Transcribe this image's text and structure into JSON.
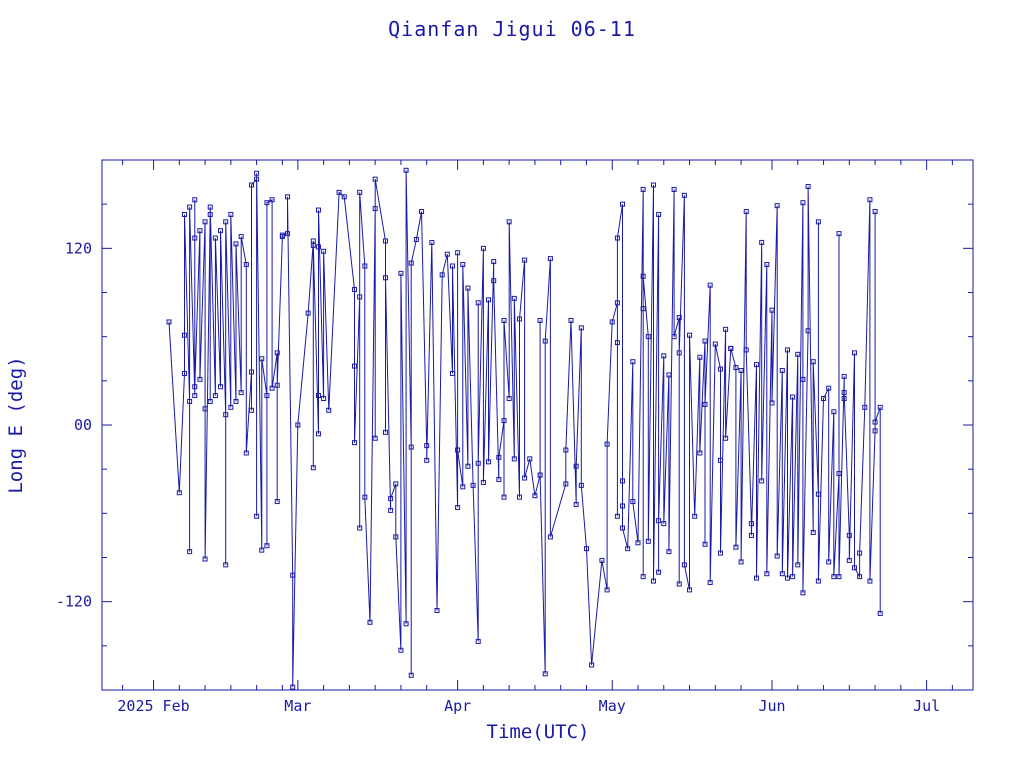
{
  "chart_data": {
    "type": "line",
    "title": "Qianfan Jigui 06-11",
    "xlabel": "Time(UTC)",
    "ylabel": "Long E (deg)",
    "x_tick_labels": [
      {
        "date": "2025-02-01",
        "label": "2025 Feb"
      },
      {
        "date": "2025-03-01",
        "label": "Mar"
      },
      {
        "date": "2025-04-01",
        "label": "Apr"
      },
      {
        "date": "2025-05-01",
        "label": "May"
      },
      {
        "date": "2025-06-01",
        "label": "Jun"
      },
      {
        "date": "2025-07-01",
        "label": "Jul"
      }
    ],
    "y_tick_labels": [
      {
        "value": 120,
        "label": "120"
      },
      {
        "value": 0,
        "label": "00"
      },
      {
        "value": -120,
        "label": "-120"
      }
    ],
    "xlim": [
      "2025-01-22",
      "2025-07-10"
    ],
    "ylim": [
      -180,
      180
    ],
    "grid": false,
    "color": "#1a1aa6",
    "series": [
      {
        "points": [
          [
            "2025-02-04",
            70
          ],
          [
            "2025-02-06",
            -46
          ],
          [
            "2025-02-07",
            35
          ],
          [
            "2025-02-07",
            61
          ],
          [
            "2025-02-07",
            143
          ],
          [
            "2025-02-08",
            16
          ],
          [
            "2025-02-08",
            -86
          ],
          [
            "2025-02-08",
            148
          ],
          [
            "2025-02-09",
            20
          ],
          [
            "2025-02-09",
            153
          ],
          [
            "2025-02-09",
            127
          ],
          [
            "2025-02-09",
            26
          ],
          [
            "2025-02-10",
            132
          ],
          [
            "2025-02-10",
            31
          ],
          [
            "2025-02-11",
            138
          ],
          [
            "2025-02-11",
            11
          ],
          [
            "2025-02-11",
            -91
          ],
          [
            "2025-02-12",
            143
          ],
          [
            "2025-02-12",
            16
          ],
          [
            "2025-02-12",
            148
          ],
          [
            "2025-02-13",
            20
          ],
          [
            "2025-02-13",
            127
          ],
          [
            "2025-02-14",
            26
          ],
          [
            "2025-02-14",
            132
          ],
          [
            "2025-02-15",
            7
          ],
          [
            "2025-02-15",
            -95
          ],
          [
            "2025-02-15",
            138
          ],
          [
            "2025-02-16",
            12
          ],
          [
            "2025-02-16",
            143
          ],
          [
            "2025-02-17",
            16
          ],
          [
            "2025-02-17",
            123
          ],
          [
            "2025-02-18",
            22
          ],
          [
            "2025-02-18",
            128
          ],
          [
            "2025-02-19",
            109
          ],
          [
            "2025-02-19",
            -19
          ],
          [
            "2025-02-20",
            36
          ],
          [
            "2025-02-20",
            10
          ],
          [
            "2025-02-20",
            163
          ],
          [
            "2025-02-21",
            167
          ],
          [
            "2025-02-21",
            -62
          ],
          [
            "2025-02-21",
            171
          ],
          [
            "2025-02-22",
            -85
          ],
          [
            "2025-02-22",
            45
          ],
          [
            "2025-02-23",
            20
          ],
          [
            "2025-02-23",
            -82
          ],
          [
            "2025-02-23",
            151
          ],
          [
            "2025-02-24",
            153
          ],
          [
            "2025-02-24",
            25
          ],
          [
            "2025-02-25",
            49
          ],
          [
            "2025-02-25",
            -52
          ],
          [
            "2025-02-25",
            27
          ],
          [
            "2025-02-26",
            128
          ],
          [
            "2025-02-26",
            129
          ],
          [
            "2025-02-27",
            130
          ],
          [
            "2025-02-27",
            155
          ],
          [
            "2025-02-28",
            -102
          ],
          [
            "2025-02-28",
            -178
          ],
          [
            "2025-03-01",
            0
          ],
          [
            "2025-03-03",
            76
          ],
          [
            "2025-03-04",
            125
          ],
          [
            "2025-03-04",
            -29
          ],
          [
            "2025-03-04",
            122
          ],
          [
            "2025-03-05",
            -6
          ],
          [
            "2025-03-05",
            20
          ],
          [
            "2025-03-05",
            121
          ],
          [
            "2025-03-05",
            146
          ],
          [
            "2025-03-06",
            18
          ],
          [
            "2025-03-06",
            118
          ],
          [
            "2025-03-07",
            10
          ],
          [
            "2025-03-09",
            158
          ],
          [
            "2025-03-10",
            155
          ],
          [
            "2025-03-12",
            92
          ],
          [
            "2025-03-12",
            40
          ],
          [
            "2025-03-12",
            -12
          ],
          [
            "2025-03-13",
            87
          ],
          [
            "2025-03-13",
            -70
          ],
          [
            "2025-03-13",
            158
          ],
          [
            "2025-03-14",
            108
          ],
          [
            "2025-03-14",
            -49
          ],
          [
            "2025-03-15",
            -134
          ],
          [
            "2025-03-16",
            147
          ],
          [
            "2025-03-16",
            -9
          ],
          [
            "2025-03-16",
            167
          ],
          [
            "2025-03-18",
            125
          ],
          [
            "2025-03-18",
            -5
          ],
          [
            "2025-03-18",
            100
          ],
          [
            "2025-03-19",
            -58
          ],
          [
            "2025-03-19",
            -50
          ],
          [
            "2025-03-20",
            -40
          ],
          [
            "2025-03-20",
            -76
          ],
          [
            "2025-03-21",
            -153
          ],
          [
            "2025-03-21",
            103
          ],
          [
            "2025-03-22",
            -135
          ],
          [
            "2025-03-22",
            173
          ],
          [
            "2025-03-23",
            -15
          ],
          [
            "2025-03-23",
            -170
          ],
          [
            "2025-03-23",
            110
          ],
          [
            "2025-03-24",
            126
          ],
          [
            "2025-03-25",
            145
          ],
          [
            "2025-03-26",
            -14
          ],
          [
            "2025-03-26",
            -24
          ],
          [
            "2025-03-27",
            124
          ],
          [
            "2025-03-28",
            -126
          ],
          [
            "2025-03-29",
            102
          ],
          [
            "2025-03-30",
            116
          ],
          [
            "2025-03-31",
            35
          ],
          [
            "2025-03-31",
            108
          ],
          [
            "2025-04-01",
            -56
          ],
          [
            "2025-04-01",
            117
          ],
          [
            "2025-04-01",
            -17
          ],
          [
            "2025-04-02",
            -42
          ],
          [
            "2025-04-02",
            109
          ],
          [
            "2025-04-03",
            -28
          ],
          [
            "2025-04-03",
            93
          ],
          [
            "2025-04-04",
            -41
          ],
          [
            "2025-04-05",
            -147
          ],
          [
            "2025-04-05",
            83
          ],
          [
            "2025-04-05",
            -26
          ],
          [
            "2025-04-06",
            120
          ],
          [
            "2025-04-06",
            -39
          ],
          [
            "2025-04-07",
            85
          ],
          [
            "2025-04-07",
            -25
          ],
          [
            "2025-04-08",
            111
          ],
          [
            "2025-04-08",
            98
          ],
          [
            "2025-04-09",
            -37
          ],
          [
            "2025-04-09",
            -22
          ],
          [
            "2025-04-10",
            3
          ],
          [
            "2025-04-10",
            -49
          ],
          [
            "2025-04-10",
            71
          ],
          [
            "2025-04-11",
            18
          ],
          [
            "2025-04-11",
            138
          ],
          [
            "2025-04-12",
            -23
          ],
          [
            "2025-04-12",
            86
          ],
          [
            "2025-04-13",
            -49
          ],
          [
            "2025-04-13",
            72
          ],
          [
            "2025-04-14",
            112
          ],
          [
            "2025-04-14",
            -36
          ],
          [
            "2025-04-15",
            -23
          ],
          [
            "2025-04-16",
            -48
          ],
          [
            "2025-04-17",
            -34
          ],
          [
            "2025-04-17",
            71
          ],
          [
            "2025-04-17",
            -34
          ],
          [
            "2025-04-18",
            -169
          ],
          [
            "2025-04-18",
            57
          ],
          [
            "2025-04-19",
            113
          ],
          [
            "2025-04-19",
            -76
          ],
          [
            "2025-04-22",
            -40
          ],
          [
            "2025-04-22",
            -17
          ],
          [
            "2025-04-23",
            71
          ],
          [
            "2025-04-24",
            -54
          ],
          [
            "2025-04-24",
            -28
          ],
          [
            "2025-04-25",
            66
          ],
          [
            "2025-04-25",
            -41
          ],
          [
            "2025-04-26",
            -84
          ],
          [
            "2025-04-27",
            -163
          ],
          [
            "2025-04-29",
            -92
          ],
          [
            "2025-04-30",
            -112
          ],
          [
            "2025-04-30",
            -13
          ],
          [
            "2025-05-01",
            70
          ],
          [
            "2025-05-02",
            83
          ],
          [
            "2025-05-02",
            -62
          ],
          [
            "2025-05-02",
            56
          ],
          [
            "2025-05-02",
            127
          ],
          [
            "2025-05-03",
            150
          ],
          [
            "2025-05-03",
            -55
          ],
          [
            "2025-05-03",
            -38
          ],
          [
            "2025-05-03",
            -70
          ],
          [
            "2025-05-04",
            -84
          ],
          [
            "2025-05-05",
            43
          ],
          [
            "2025-05-05",
            -52
          ],
          [
            "2025-05-06",
            -80
          ],
          [
            "2025-05-07",
            160
          ],
          [
            "2025-05-07",
            -103
          ],
          [
            "2025-05-07",
            79
          ],
          [
            "2025-05-07",
            101
          ],
          [
            "2025-05-08",
            60
          ],
          [
            "2025-05-08",
            -79
          ],
          [
            "2025-05-09",
            163
          ],
          [
            "2025-05-09",
            -106
          ],
          [
            "2025-05-10",
            143
          ],
          [
            "2025-05-10",
            -100
          ],
          [
            "2025-05-10",
            -65
          ],
          [
            "2025-05-11",
            47
          ],
          [
            "2025-05-11",
            -67
          ],
          [
            "2025-05-12",
            34
          ],
          [
            "2025-05-12",
            -86
          ],
          [
            "2025-05-13",
            160
          ],
          [
            "2025-05-13",
            60
          ],
          [
            "2025-05-14",
            73
          ],
          [
            "2025-05-14",
            -108
          ],
          [
            "2025-05-14",
            49
          ],
          [
            "2025-05-15",
            156
          ],
          [
            "2025-05-15",
            -95
          ],
          [
            "2025-05-16",
            -112
          ],
          [
            "2025-05-16",
            61
          ],
          [
            "2025-05-17",
            -62
          ],
          [
            "2025-05-18",
            46
          ],
          [
            "2025-05-18",
            -19
          ],
          [
            "2025-05-19",
            57
          ],
          [
            "2025-05-19",
            -81
          ],
          [
            "2025-05-19",
            14
          ],
          [
            "2025-05-20",
            95
          ],
          [
            "2025-05-20",
            -107
          ],
          [
            "2025-05-21",
            55
          ],
          [
            "2025-05-22",
            38
          ],
          [
            "2025-05-22",
            -24
          ],
          [
            "2025-05-22",
            -87
          ],
          [
            "2025-05-23",
            65
          ],
          [
            "2025-05-23",
            -9
          ],
          [
            "2025-05-24",
            52
          ],
          [
            "2025-05-24",
            52
          ],
          [
            "2025-05-25",
            39
          ],
          [
            "2025-05-25",
            -83
          ],
          [
            "2025-05-26",
            37
          ],
          [
            "2025-05-26",
            -93
          ],
          [
            "2025-05-27",
            145
          ],
          [
            "2025-05-27",
            51
          ],
          [
            "2025-05-28",
            -67
          ],
          [
            "2025-05-28",
            -75
          ],
          [
            "2025-05-29",
            41
          ],
          [
            "2025-05-29",
            -104
          ],
          [
            "2025-05-30",
            124
          ],
          [
            "2025-05-30",
            -38
          ],
          [
            "2025-05-31",
            109
          ],
          [
            "2025-05-31",
            -101
          ],
          [
            "2025-06-01",
            78
          ],
          [
            "2025-06-01",
            15
          ],
          [
            "2025-06-02",
            149
          ],
          [
            "2025-06-02",
            -89
          ],
          [
            "2025-06-03",
            37
          ],
          [
            "2025-06-03",
            -101
          ],
          [
            "2025-06-04",
            51
          ],
          [
            "2025-06-04",
            -104
          ],
          [
            "2025-06-05",
            19
          ],
          [
            "2025-06-05",
            -103
          ],
          [
            "2025-06-06",
            48
          ],
          [
            "2025-06-06",
            -95
          ],
          [
            "2025-06-07",
            151
          ],
          [
            "2025-06-07",
            31
          ],
          [
            "2025-06-07",
            -114
          ],
          [
            "2025-06-08",
            64
          ],
          [
            "2025-06-08",
            162
          ],
          [
            "2025-06-09",
            -73
          ],
          [
            "2025-06-09",
            43
          ],
          [
            "2025-06-10",
            -47
          ],
          [
            "2025-06-10",
            138
          ],
          [
            "2025-06-10",
            -106
          ],
          [
            "2025-06-11",
            18
          ],
          [
            "2025-06-12",
            25
          ],
          [
            "2025-06-12",
            -93
          ],
          [
            "2025-06-13",
            9
          ],
          [
            "2025-06-13",
            -103
          ],
          [
            "2025-06-14",
            -33
          ],
          [
            "2025-06-14",
            130
          ],
          [
            "2025-06-14",
            -103
          ],
          [
            "2025-06-15",
            33
          ],
          [
            "2025-06-15",
            18
          ],
          [
            "2025-06-15",
            22
          ],
          [
            "2025-06-16",
            -75
          ],
          [
            "2025-06-16",
            -92
          ],
          [
            "2025-06-17",
            49
          ],
          [
            "2025-06-17",
            -97
          ],
          [
            "2025-06-18",
            -103
          ],
          [
            "2025-06-18",
            -87
          ],
          [
            "2025-06-19",
            12
          ],
          [
            "2025-06-20",
            153
          ],
          [
            "2025-06-20",
            -106
          ],
          [
            "2025-06-21",
            -4
          ],
          [
            "2025-06-21",
            145
          ],
          [
            "2025-06-21",
            2
          ],
          [
            "2025-06-22",
            12
          ],
          [
            "2025-06-22",
            -128
          ]
        ]
      }
    ]
  }
}
